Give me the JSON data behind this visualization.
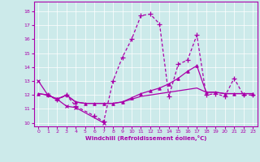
{
  "bg_color": "#cceaea",
  "line_color": "#aa00aa",
  "xlabel": "Windchill (Refroidissement éolien,°C)",
  "xlim": [
    -0.5,
    23.5
  ],
  "ylim": [
    9.75,
    18.7
  ],
  "xticks": [
    0,
    1,
    2,
    3,
    4,
    5,
    6,
    7,
    8,
    9,
    10,
    11,
    12,
    13,
    14,
    15,
    16,
    17,
    18,
    19,
    20,
    21,
    22,
    23
  ],
  "yticks": [
    10,
    11,
    12,
    13,
    14,
    15,
    16,
    17,
    18
  ],
  "line1_x": [
    0,
    1,
    2,
    3,
    4,
    7
  ],
  "line1_y": [
    13.0,
    12.0,
    11.7,
    11.2,
    11.1,
    10.0
  ],
  "line2_x": [
    1,
    2,
    3,
    4,
    6,
    7,
    8,
    9,
    10,
    11,
    12,
    13,
    14,
    15,
    16,
    17,
    18,
    19,
    20,
    21,
    22,
    23
  ],
  "line2_y": [
    12.0,
    11.65,
    12.0,
    11.2,
    10.5,
    10.1,
    13.0,
    14.7,
    16.0,
    17.7,
    17.8,
    17.1,
    11.9,
    14.2,
    14.5,
    16.3,
    12.0,
    12.1,
    11.9,
    13.2,
    12.0,
    12.0
  ],
  "line3_x": [
    0,
    1,
    2,
    3,
    4,
    5,
    6,
    7,
    8,
    9,
    10,
    11,
    12,
    13,
    14,
    15,
    16,
    17,
    18,
    19,
    20,
    21,
    22,
    23
  ],
  "line3_y": [
    12.1,
    12.0,
    11.7,
    12.0,
    11.5,
    11.4,
    11.4,
    11.4,
    11.4,
    11.5,
    11.8,
    12.1,
    12.3,
    12.5,
    12.8,
    13.2,
    13.7,
    14.1,
    12.2,
    12.2,
    12.1,
    12.1,
    12.1,
    12.1
  ],
  "line4_x": [
    0,
    1,
    2,
    3,
    4,
    5,
    6,
    7,
    8,
    9,
    10,
    11,
    12,
    13,
    14,
    15,
    16,
    17,
    18,
    19,
    20,
    21,
    22,
    23
  ],
  "line4_y": [
    12.1,
    12.0,
    11.7,
    12.0,
    11.5,
    11.4,
    11.4,
    11.4,
    11.4,
    11.5,
    11.7,
    11.9,
    12.0,
    12.1,
    12.2,
    12.3,
    12.4,
    12.5,
    12.2,
    12.2,
    12.1,
    12.1,
    12.1,
    12.1
  ]
}
